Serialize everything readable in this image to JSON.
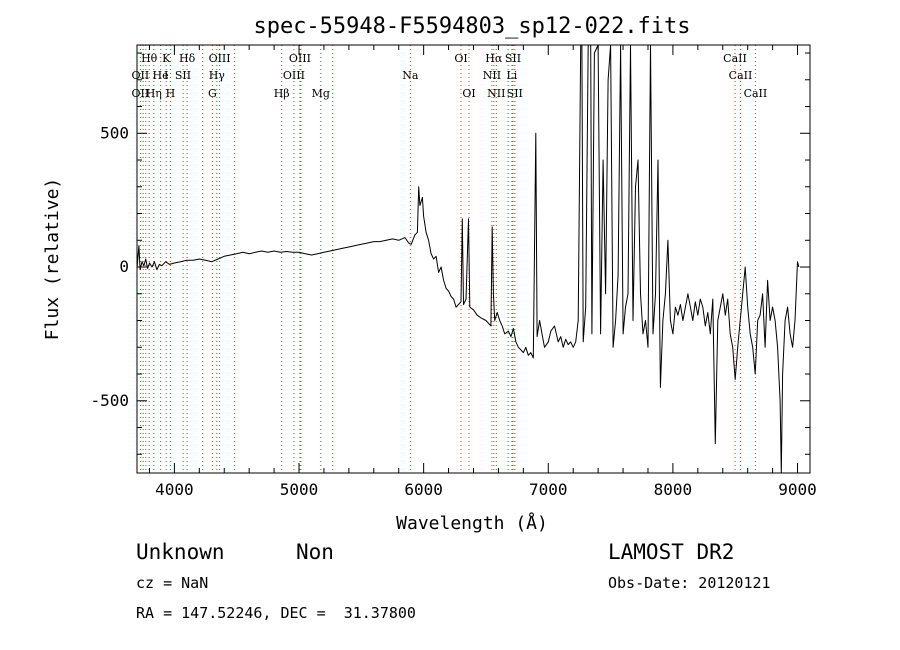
{
  "chart_data": {
    "type": "line",
    "title": "spec-55948-F5594803_sp12-022.fits",
    "xlabel": "Wavelength (Å)",
    "ylabel": "Flux (relative)",
    "xlim": [
      3700,
      9100
    ],
    "ylim": [
      -770,
      830
    ],
    "xticks": [
      4000,
      5000,
      6000,
      7000,
      8000,
      9000
    ],
    "yticks": [
      -500,
      0,
      500
    ],
    "grid": false,
    "line_color": "#000000",
    "marker_color": "#e03030",
    "lines": [
      {
        "label": "Hθ",
        "x": 3798,
        "row": 0
      },
      {
        "label": "K",
        "x": 3934,
        "row": 0
      },
      {
        "label": "Hδ",
        "x": 4102,
        "row": 0
      },
      {
        "label": "OIII",
        "x": 4363,
        "row": 0
      },
      {
        "label": "OIII",
        "x": 5007,
        "row": 0
      },
      {
        "label": "OI",
        "x": 6300,
        "row": 0
      },
      {
        "label": "Hα",
        "x": 6563,
        "row": 0
      },
      {
        "label": "SII",
        "x": 6717,
        "row": 0
      },
      {
        "label": "CaII",
        "x": 8498,
        "row": 0
      },
      {
        "label": "OII",
        "x": 3727,
        "row": 1
      },
      {
        "label": "He",
        "x": 3889,
        "row": 1
      },
      {
        "label": "I",
        "x": 3934,
        "row": 1
      },
      {
        "label": "SII",
        "x": 4069,
        "row": 1
      },
      {
        "label": "Hγ",
        "x": 4340,
        "row": 1
      },
      {
        "label": "OIII",
        "x": 4959,
        "row": 1
      },
      {
        "label": "Na",
        "x": 5893,
        "row": 1
      },
      {
        "label": "NII",
        "x": 6548,
        "row": 1
      },
      {
        "label": "Li",
        "x": 6708,
        "row": 1
      },
      {
        "label": "CaII",
        "x": 8542,
        "row": 1
      },
      {
        "label": "OII",
        "x": 3727,
        "row": 2
      },
      {
        "label": "Hη",
        "x": 3835,
        "row": 2
      },
      {
        "label": "H",
        "x": 3968,
        "row": 2
      },
      {
        "label": "G",
        "x": 4305,
        "row": 2
      },
      {
        "label": "Hβ",
        "x": 4861,
        "row": 2
      },
      {
        "label": "Mg",
        "x": 5175,
        "row": 2
      },
      {
        "label": "OI",
        "x": 6364,
        "row": 2
      },
      {
        "label": "NII",
        "x": 6583,
        "row": 2
      },
      {
        "label": "SII",
        "x": 6731,
        "row": 2
      },
      {
        "label": "CaII",
        "x": 8662,
        "row": 2
      }
    ],
    "extra_markers": [
      3750,
      3771,
      3889,
      4227,
      4481,
      5015,
      5270,
      6678
    ],
    "spectrum": [
      [
        3700,
        -5
      ],
      [
        3715,
        80
      ],
      [
        3725,
        -10
      ],
      [
        3740,
        20
      ],
      [
        3755,
        5
      ],
      [
        3770,
        30
      ],
      [
        3785,
        -5
      ],
      [
        3800,
        15
      ],
      [
        3820,
        0
      ],
      [
        3840,
        20
      ],
      [
        3860,
        -10
      ],
      [
        3880,
        10
      ],
      [
        3900,
        5
      ],
      [
        3930,
        20
      ],
      [
        3960,
        10
      ],
      [
        4000,
        15
      ],
      [
        4050,
        20
      ],
      [
        4100,
        25
      ],
      [
        4150,
        25
      ],
      [
        4200,
        30
      ],
      [
        4250,
        25
      ],
      [
        4300,
        20
      ],
      [
        4350,
        30
      ],
      [
        4400,
        40
      ],
      [
        4450,
        45
      ],
      [
        4500,
        50
      ],
      [
        4550,
        55
      ],
      [
        4600,
        50
      ],
      [
        4650,
        55
      ],
      [
        4700,
        60
      ],
      [
        4750,
        55
      ],
      [
        4800,
        60
      ],
      [
        4850,
        55
      ],
      [
        4900,
        58
      ],
      [
        4950,
        55
      ],
      [
        5000,
        55
      ],
      [
        5050,
        50
      ],
      [
        5100,
        45
      ],
      [
        5150,
        50
      ],
      [
        5200,
        55
      ],
      [
        5250,
        60
      ],
      [
        5300,
        65
      ],
      [
        5350,
        70
      ],
      [
        5400,
        75
      ],
      [
        5450,
        80
      ],
      [
        5500,
        85
      ],
      [
        5550,
        90
      ],
      [
        5600,
        95
      ],
      [
        5650,
        95
      ],
      [
        5700,
        100
      ],
      [
        5750,
        105
      ],
      [
        5800,
        100
      ],
      [
        5850,
        110
      ],
      [
        5880,
        90
      ],
      [
        5900,
        85
      ],
      [
        5930,
        120
      ],
      [
        5950,
        130
      ],
      [
        5960,
        300
      ],
      [
        5970,
        230
      ],
      [
        5990,
        260
      ],
      [
        6000,
        190
      ],
      [
        6020,
        130
      ],
      [
        6040,
        100
      ],
      [
        6060,
        50
      ],
      [
        6080,
        30
      ],
      [
        6100,
        40
      ],
      [
        6120,
        -20
      ],
      [
        6140,
        0
      ],
      [
        6160,
        -50
      ],
      [
        6180,
        -80
      ],
      [
        6200,
        -90
      ],
      [
        6220,
        -110
      ],
      [
        6240,
        -120
      ],
      [
        6260,
        -150
      ],
      [
        6280,
        -140
      ],
      [
        6300,
        -130
      ],
      [
        6310,
        180
      ],
      [
        6320,
        -140
      ],
      [
        6340,
        -120
      ],
      [
        6360,
        180
      ],
      [
        6370,
        -150
      ],
      [
        6400,
        -160
      ],
      [
        6430,
        -180
      ],
      [
        6460,
        -190
      ],
      [
        6500,
        -200
      ],
      [
        6540,
        -220
      ],
      [
        6550,
        150
      ],
      [
        6560,
        -100
      ],
      [
        6570,
        -200
      ],
      [
        6590,
        -170
      ],
      [
        6610,
        -200
      ],
      [
        6630,
        -220
      ],
      [
        6650,
        -250
      ],
      [
        6680,
        -240
      ],
      [
        6700,
        -260
      ],
      [
        6720,
        -230
      ],
      [
        6740,
        -280
      ],
      [
        6760,
        -300
      ],
      [
        6780,
        -310
      ],
      [
        6800,
        -320
      ],
      [
        6820,
        -300
      ],
      [
        6840,
        -330
      ],
      [
        6860,
        -320
      ],
      [
        6880,
        -340
      ],
      [
        6900,
        500
      ],
      [
        6910,
        -260
      ],
      [
        6930,
        -200
      ],
      [
        6950,
        -250
      ],
      [
        6970,
        -300
      ],
      [
        7000,
        -280
      ],
      [
        7020,
        -240
      ],
      [
        7050,
        -220
      ],
      [
        7080,
        -280
      ],
      [
        7100,
        -260
      ],
      [
        7120,
        -300
      ],
      [
        7140,
        -270
      ],
      [
        7160,
        -290
      ],
      [
        7180,
        -280
      ],
      [
        7200,
        -300
      ],
      [
        7220,
        -280
      ],
      [
        7240,
        -200
      ],
      [
        7260,
        830
      ],
      [
        7270,
        830
      ],
      [
        7280,
        -280
      ],
      [
        7300,
        -150
      ],
      [
        7320,
        830
      ],
      [
        7340,
        830
      ],
      [
        7350,
        -250
      ],
      [
        7370,
        800
      ],
      [
        7400,
        830
      ],
      [
        7420,
        -250
      ],
      [
        7440,
        400
      ],
      [
        7460,
        -100
      ],
      [
        7480,
        700
      ],
      [
        7500,
        830
      ],
      [
        7520,
        -300
      ],
      [
        7540,
        -200
      ],
      [
        7560,
        -30
      ],
      [
        7580,
        830
      ],
      [
        7600,
        -250
      ],
      [
        7620,
        -150
      ],
      [
        7640,
        -100
      ],
      [
        7660,
        830
      ],
      [
        7680,
        -200
      ],
      [
        7700,
        300
      ],
      [
        7720,
        400
      ],
      [
        7740,
        -100
      ],
      [
        7760,
        -250
      ],
      [
        7780,
        -200
      ],
      [
        7800,
        -300
      ],
      [
        7820,
        830
      ],
      [
        7840,
        -250
      ],
      [
        7860,
        -100
      ],
      [
        7880,
        400
      ],
      [
        7900,
        -450
      ],
      [
        7920,
        -200
      ],
      [
        7940,
        -100
      ],
      [
        7960,
        100
      ],
      [
        7980,
        -200
      ],
      [
        8000,
        -250
      ],
      [
        8020,
        -150
      ],
      [
        8040,
        -180
      ],
      [
        8060,
        -140
      ],
      [
        8080,
        -200
      ],
      [
        8100,
        -150
      ],
      [
        8120,
        -100
      ],
      [
        8140,
        -150
      ],
      [
        8160,
        -200
      ],
      [
        8180,
        -130
      ],
      [
        8200,
        -180
      ],
      [
        8220,
        -120
      ],
      [
        8240,
        -150
      ],
      [
        8260,
        -220
      ],
      [
        8280,
        -170
      ],
      [
        8300,
        -250
      ],
      [
        8320,
        -120
      ],
      [
        8340,
        -660
      ],
      [
        8360,
        -200
      ],
      [
        8380,
        -150
      ],
      [
        8400,
        -100
      ],
      [
        8420,
        -180
      ],
      [
        8440,
        -120
      ],
      [
        8460,
        -250
      ],
      [
        8480,
        -300
      ],
      [
        8500,
        -420
      ],
      [
        8520,
        -300
      ],
      [
        8540,
        -200
      ],
      [
        8560,
        -100
      ],
      [
        8580,
        0
      ],
      [
        8600,
        -150
      ],
      [
        8620,
        -250
      ],
      [
        8640,
        -300
      ],
      [
        8660,
        -400
      ],
      [
        8680,
        -200
      ],
      [
        8700,
        -180
      ],
      [
        8720,
        -100
      ],
      [
        8740,
        -300
      ],
      [
        8760,
        -50
      ],
      [
        8780,
        -200
      ],
      [
        8800,
        -150
      ],
      [
        8820,
        -200
      ],
      [
        8840,
        -300
      ],
      [
        8860,
        -500
      ],
      [
        8870,
        -770
      ],
      [
        8880,
        -400
      ],
      [
        8900,
        -200
      ],
      [
        8920,
        -150
      ],
      [
        8940,
        -250
      ],
      [
        8960,
        -300
      ],
      [
        8980,
        -200
      ],
      [
        9000,
        20
      ],
      [
        9010,
        0
      ]
    ]
  },
  "info": {
    "class_label": "Unknown",
    "subclass_label": "Non",
    "survey_label": "LAMOST DR2",
    "cz_text": "cz = NaN",
    "obs_date_text": "Obs-Date: 20120121",
    "coords_text": "RA = 147.52246, DEC =  31.37800"
  }
}
